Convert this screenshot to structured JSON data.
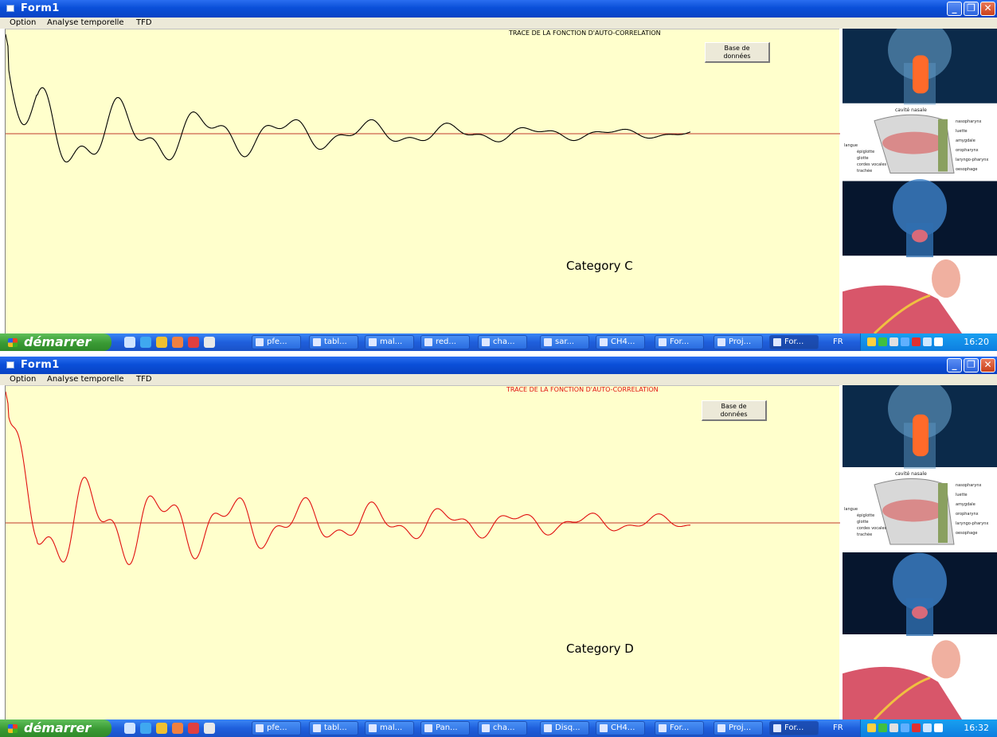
{
  "screens": [
    {
      "window_title": "Form1",
      "menu": [
        "Option",
        "Analyse temporelle",
        "TFD"
      ],
      "plot_title": "TRACE DE LA FONCTION D'AUTO-CORRELATION",
      "button_label": "Base de\ndonnées",
      "category_label": "Category C",
      "trace_color": "#000000",
      "axis_color": "#c0392b",
      "taskbar": {
        "start_label": "démarrer",
        "items": [
          "pfe...",
          "tabl...",
          "mal...",
          "red...",
          "cha...",
          "sar...",
          "CH4...",
          "For...",
          "Proj...",
          "For..."
        ],
        "active_item": 9,
        "language": "FR",
        "clock": "16:20"
      }
    },
    {
      "window_title": "Form1",
      "menu": [
        "Option",
        "Analyse temporelle",
        "TFD"
      ],
      "plot_title": "TRACE DE LA FONCTION D'AUTO-CORRELATION",
      "button_label": "Base de\ndonnées",
      "category_label": "Category D",
      "trace_color": "#e01010",
      "axis_color": "#c0392b",
      "taskbar": {
        "start_label": "démarrer",
        "items": [
          "pfe...",
          "tabl...",
          "mal...",
          "Pan...",
          "cha...",
          "Disq...",
          "CH4...",
          "For...",
          "Proj...",
          "For..."
        ],
        "active_item": 9,
        "language": "FR",
        "clock": "16:32"
      }
    }
  ],
  "side_images": [
    "throat-anatomy-glow-image",
    "pharynx-cross-section-diagram",
    "neck-xray-image",
    "ear-throat-anatomy-image"
  ],
  "diagram_labels": {
    "top": "cavité nasale",
    "right": [
      "nasopharynx",
      "luette",
      "amygdale",
      "oropharynx",
      "laryngo-pharynx",
      "oesophage"
    ],
    "left": [
      "langue",
      "épiglotte",
      "glotte",
      "cordes vocales",
      "trachée"
    ]
  }
}
